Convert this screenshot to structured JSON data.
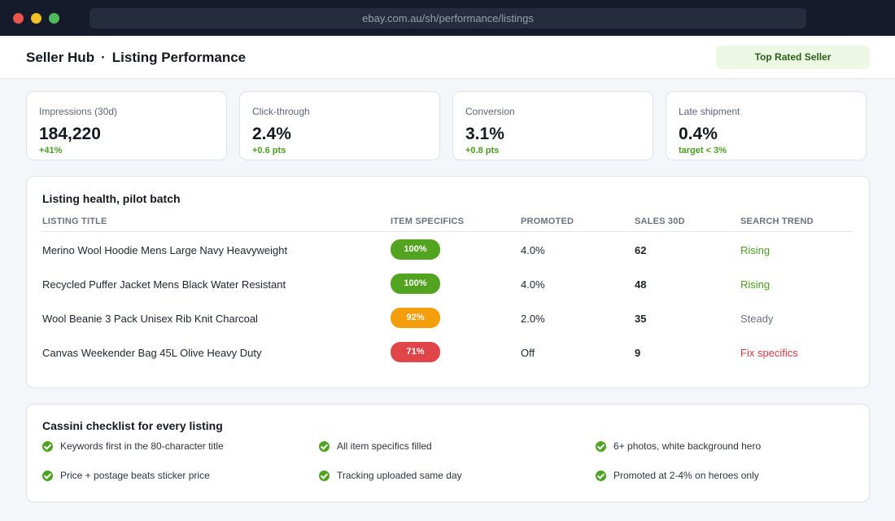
{
  "browser": {
    "url": "ebay.com.au/sh/performance/listings"
  },
  "header": {
    "app": "Seller Hub",
    "separator": "·",
    "page": "Listing Performance",
    "badge": "Top Rated Seller"
  },
  "kpis": [
    {
      "label": "Impressions (30d)",
      "value": "184,220",
      "delta": "+41%"
    },
    {
      "label": "Click-through",
      "value": "2.4%",
      "delta": "+0.6 pts"
    },
    {
      "label": "Conversion",
      "value": "3.1%",
      "delta": "+0.8 pts"
    },
    {
      "label": "Late shipment",
      "value": "0.4%",
      "delta": "target < 3%"
    }
  ],
  "health": {
    "title": "Listing health, pilot batch",
    "columns": [
      "LISTING TITLE",
      "ITEM SPECIFICS",
      "PROMOTED",
      "SALES 30D",
      "SEARCH TREND"
    ],
    "rows": [
      {
        "title": "Merino Wool Hoodie Mens Large Navy Heavyweight",
        "specifics": "100%",
        "specifics_color": "#52a31f",
        "promoted": "4.0%",
        "sales": "62",
        "trend": "Rising",
        "trend_color": "#4a9e1f"
      },
      {
        "title": "Recycled Puffer Jacket Mens Black Water Resistant",
        "specifics": "100%",
        "specifics_color": "#52a31f",
        "promoted": "4.0%",
        "sales": "48",
        "trend": "Rising",
        "trend_color": "#4a9e1f"
      },
      {
        "title": "Wool Beanie 3 Pack Unisex Rib Knit Charcoal",
        "specifics": "92%",
        "specifics_color": "#f59e0b",
        "promoted": "2.0%",
        "sales": "35",
        "trend": "Steady",
        "trend_color": "#6a7180"
      },
      {
        "title": "Canvas Weekender Bag 45L Olive Heavy Duty",
        "specifics": "71%",
        "specifics_color": "#e0454a",
        "promoted": "Off",
        "sales": "9",
        "trend": "Fix specifics",
        "trend_color": "#d9363e"
      }
    ]
  },
  "checklist": {
    "title": "Cassini checklist for every listing",
    "icon": "check-circle-icon",
    "items": [
      "Keywords first in the 80-character title",
      "All item specifics filled",
      "6+ photos, white background hero",
      "Price + postage beats sticker price",
      "Tracking uploaded same day",
      "Promoted at 2-4% on heroes only"
    ]
  }
}
